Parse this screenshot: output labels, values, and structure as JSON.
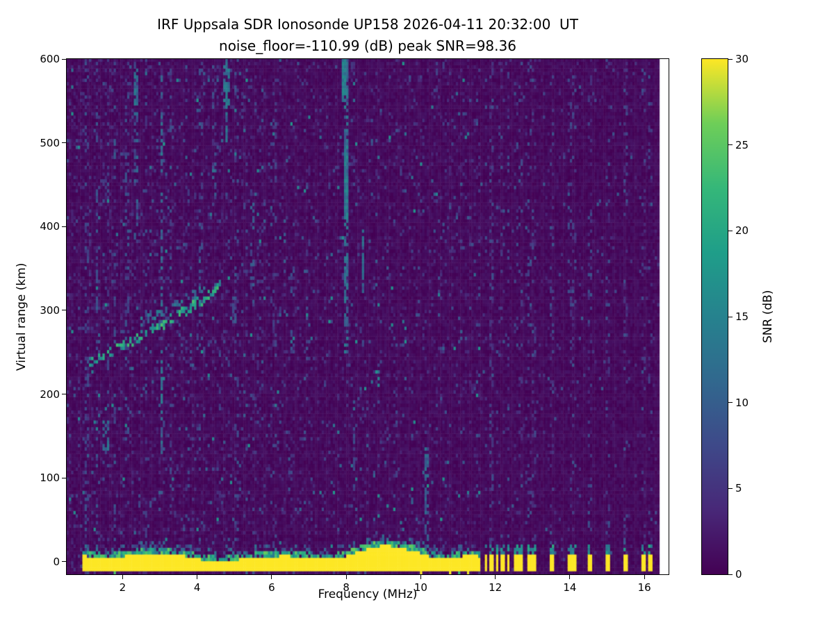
{
  "title": {
    "line1": "IRF Uppsala SDR Ionosonde UP158 2026-04-11 20:32:00  UT",
    "line2": "noise_floor=-110.99 (dB) peak SNR=98.36"
  },
  "chart_data": {
    "type": "heatmap",
    "title": "IRF Uppsala SDR Ionosonde UP158 2026-04-11 20:32:00  UT",
    "subtitle": "noise_floor=-110.99 (dB) peak SNR=98.36",
    "station": "UP158",
    "timestamp_ut": "2026-04-11 20:32:00",
    "noise_floor_db": -110.99,
    "peak_snr_db": 98.36,
    "xlabel": "Frequency (MHz)",
    "ylabel": "Virtual range (km)",
    "xlim": [
      0.5,
      16.65
    ],
    "ylim": [
      -15,
      600
    ],
    "x_ticks": [
      2,
      4,
      6,
      8,
      10,
      12,
      14,
      16
    ],
    "y_ticks": [
      0,
      100,
      200,
      300,
      400,
      500,
      600
    ],
    "grid": false,
    "colorbar": {
      "label": "SNR (dB)",
      "ticks": [
        0,
        5,
        10,
        15,
        20,
        25,
        30
      ],
      "vmin": 0,
      "vmax": 30,
      "colormap": "viridis",
      "position": "right"
    },
    "colormap_stops": [
      "#440154",
      "#482878",
      "#3e4989",
      "#31688e",
      "#26828e",
      "#1f9e89",
      "#35b779",
      "#6ece58",
      "#fde725"
    ],
    "data_extent": {
      "f_start": 0.5,
      "f_end": 16.4
    },
    "features": {
      "ground_band": {
        "f_start": 0.95,
        "f_end": 11.62,
        "r_bottom": -9,
        "base_thickness_km": 11,
        "bumps": [
          {
            "f": 2.3,
            "extra": 3,
            "w": 0.5
          },
          {
            "f": 5.2,
            "extra": 3,
            "w": 0.6
          },
          {
            "f": 8.9,
            "extra": 9,
            "w": 0.9
          },
          {
            "f": 10.0,
            "extra": 3,
            "w": 0.4
          },
          {
            "f": 10.9,
            "extra": 4,
            "w": 0.4
          },
          {
            "f": 11.35,
            "extra": 5,
            "w": 0.3
          }
        ]
      },
      "pulses": {
        "freqs": [
          11.75,
          11.9,
          12.05,
          12.2,
          12.35,
          12.55,
          12.7,
          12.9,
          13.05,
          13.5,
          14.0,
          14.12,
          14.55,
          15.0,
          15.5,
          16.0,
          16.15
        ],
        "r_bottom": -9,
        "r_top": 9
      },
      "echo_traces": [
        {
          "points": [
            [
              1.1,
              237
            ],
            [
              1.4,
              243
            ],
            [
              1.8,
              252
            ],
            [
              2.2,
              262
            ],
            [
              2.6,
              272
            ],
            [
              3.0,
              282
            ],
            [
              3.4,
              292
            ],
            [
              3.8,
              303
            ],
            [
              4.2,
              315
            ],
            [
              4.5,
              325
            ],
            [
              4.65,
              332
            ]
          ],
          "width_km": 6,
          "intensity": 22,
          "density": 0.5
        },
        {
          "points": [
            [
              2.5,
              286
            ],
            [
              3.0,
              297
            ],
            [
              3.5,
              309
            ],
            [
              4.0,
              321
            ],
            [
              4.4,
              331
            ],
            [
              4.6,
              338
            ]
          ],
          "width_km": 5,
          "intensity": 14,
          "density": 0.3
        }
      ],
      "stripes": [
        {
          "f": 1.05,
          "y0": -15,
          "y1": 600,
          "i": 8,
          "d": 0.22
        },
        {
          "f": 1.3,
          "y0": -15,
          "y1": 600,
          "i": 9,
          "d": 0.28
        },
        {
          "f": 1.6,
          "y0": 100,
          "y1": 600,
          "i": 8,
          "d": 0.18
        },
        {
          "f": 1.78,
          "y0": 0,
          "y1": 600,
          "i": 9,
          "d": 0.2
        },
        {
          "f": 2.1,
          "y0": 150,
          "y1": 600,
          "i": 9,
          "d": 0.18
        },
        {
          "f": 2.35,
          "y0": 380,
          "y1": 600,
          "i": 11,
          "d": 0.3
        },
        {
          "f": 2.62,
          "y0": 0,
          "y1": 600,
          "i": 8,
          "d": 0.14
        },
        {
          "f": 3.05,
          "y0": 130,
          "y1": 600,
          "i": 12,
          "d": 0.3
        },
        {
          "f": 3.3,
          "y0": 0,
          "y1": 600,
          "i": 8,
          "d": 0.13
        },
        {
          "f": 4.1,
          "y0": 280,
          "y1": 600,
          "i": 8,
          "d": 0.14
        },
        {
          "f": 4.45,
          "y0": 420,
          "y1": 600,
          "i": 9,
          "d": 0.18
        },
        {
          "f": 4.78,
          "y0": 500,
          "y1": 600,
          "i": 13,
          "d": 0.4
        },
        {
          "f": 5.05,
          "y0": 0,
          "y1": 600,
          "i": 8,
          "d": 0.13
        },
        {
          "f": 5.5,
          "y0": 330,
          "y1": 430,
          "i": 10,
          "d": 0.3
        },
        {
          "f": 6.1,
          "y0": 0,
          "y1": 600,
          "i": 7,
          "d": 0.11
        },
        {
          "f": 6.35,
          "y0": 340,
          "y1": 410,
          "i": 10,
          "d": 0.3
        },
        {
          "f": 7.0,
          "y0": 240,
          "y1": 420,
          "i": 8,
          "d": 0.13
        },
        {
          "f": 7.95,
          "y0": 540,
          "y1": 600,
          "i": 15,
          "d": 0.85
        },
        {
          "f": 8.0,
          "y0": 250,
          "y1": 600,
          "i": 13,
          "d": 0.55
        },
        {
          "f": 8.45,
          "y0": 320,
          "y1": 395,
          "i": 12,
          "d": 0.5
        },
        {
          "f": 9.3,
          "y0": 80,
          "y1": 260,
          "i": 7,
          "d": 0.12
        },
        {
          "f": 10.15,
          "y0": -5,
          "y1": 135,
          "i": 12,
          "d": 0.55
        },
        {
          "f": 10.5,
          "y0": 240,
          "y1": 460,
          "i": 7,
          "d": 0.11
        },
        {
          "f": 11.9,
          "y0": 0,
          "y1": 600,
          "i": 6,
          "d": 0.13
        },
        {
          "f": 12.1,
          "y0": 0,
          "y1": 600,
          "i": 6,
          "d": 0.11
        },
        {
          "f": 12.35,
          "y0": 0,
          "y1": 600,
          "i": 6,
          "d": 0.1
        },
        {
          "f": 12.6,
          "y0": 0,
          "y1": 600,
          "i": 6,
          "d": 0.09
        },
        {
          "f": 12.85,
          "y0": 0,
          "y1": 600,
          "i": 6,
          "d": 0.09
        },
        {
          "f": 13.05,
          "y0": 0,
          "y1": 600,
          "i": 5,
          "d": 0.08
        },
        {
          "f": 13.5,
          "y0": 0,
          "y1": 600,
          "i": 6,
          "d": 0.1
        },
        {
          "f": 14.05,
          "y0": 0,
          "y1": 600,
          "i": 6,
          "d": 0.1
        },
        {
          "f": 14.55,
          "y0": 0,
          "y1": 600,
          "i": 5,
          "d": 0.08
        },
        {
          "f": 15.0,
          "y0": 0,
          "y1": 600,
          "i": 5,
          "d": 0.07
        },
        {
          "f": 15.5,
          "y0": 0,
          "y1": 600,
          "i": 5,
          "d": 0.07
        },
        {
          "f": 16.0,
          "y0": 0,
          "y1": 600,
          "i": 5,
          "d": 0.07
        }
      ],
      "blobs": [
        {
          "f": 1.55,
          "r": 150,
          "df": 0.08,
          "dr": 18,
          "i": 13,
          "d": 0.6
        },
        {
          "f": 3.05,
          "r": 215,
          "df": 0.06,
          "dr": 25,
          "i": 14,
          "d": 0.7
        },
        {
          "f": 3.05,
          "r": 505,
          "df": 0.06,
          "dr": 30,
          "i": 13,
          "d": 0.6
        },
        {
          "f": 2.35,
          "r": 560,
          "df": 0.06,
          "dr": 25,
          "i": 13,
          "d": 0.6
        },
        {
          "f": 4.78,
          "r": 570,
          "df": 0.07,
          "dr": 25,
          "i": 14,
          "d": 0.65
        },
        {
          "f": 8.0,
          "r": 455,
          "df": 0.05,
          "dr": 45,
          "i": 15,
          "d": 0.9
        },
        {
          "f": 7.95,
          "r": 580,
          "df": 0.05,
          "dr": 20,
          "i": 15,
          "d": 0.9
        },
        {
          "f": 8.45,
          "r": 360,
          "df": 0.05,
          "dr": 30,
          "i": 12,
          "d": 0.6
        },
        {
          "f": 5.0,
          "r": 300,
          "df": 0.05,
          "dr": 15,
          "i": 9,
          "d": 0.4
        },
        {
          "f": 6.55,
          "r": 300,
          "df": 0.05,
          "dr": 60,
          "i": 8,
          "d": 0.3
        },
        {
          "f": 8.2,
          "r": 140,
          "df": 0.05,
          "dr": 60,
          "i": 8,
          "d": 0.25
        }
      ],
      "noise": {
        "base_density": 0.09,
        "low_freq_boost": 0.04,
        "low_freq_max": 6,
        "right_cut_freq": 11.6,
        "right_density": 0.03,
        "hot_speckle_prob": 0.008,
        "below_band_speckle_prob": 0.03
      }
    }
  },
  "render": {
    "seed": 1337,
    "df": 0.06,
    "dr": 4
  }
}
